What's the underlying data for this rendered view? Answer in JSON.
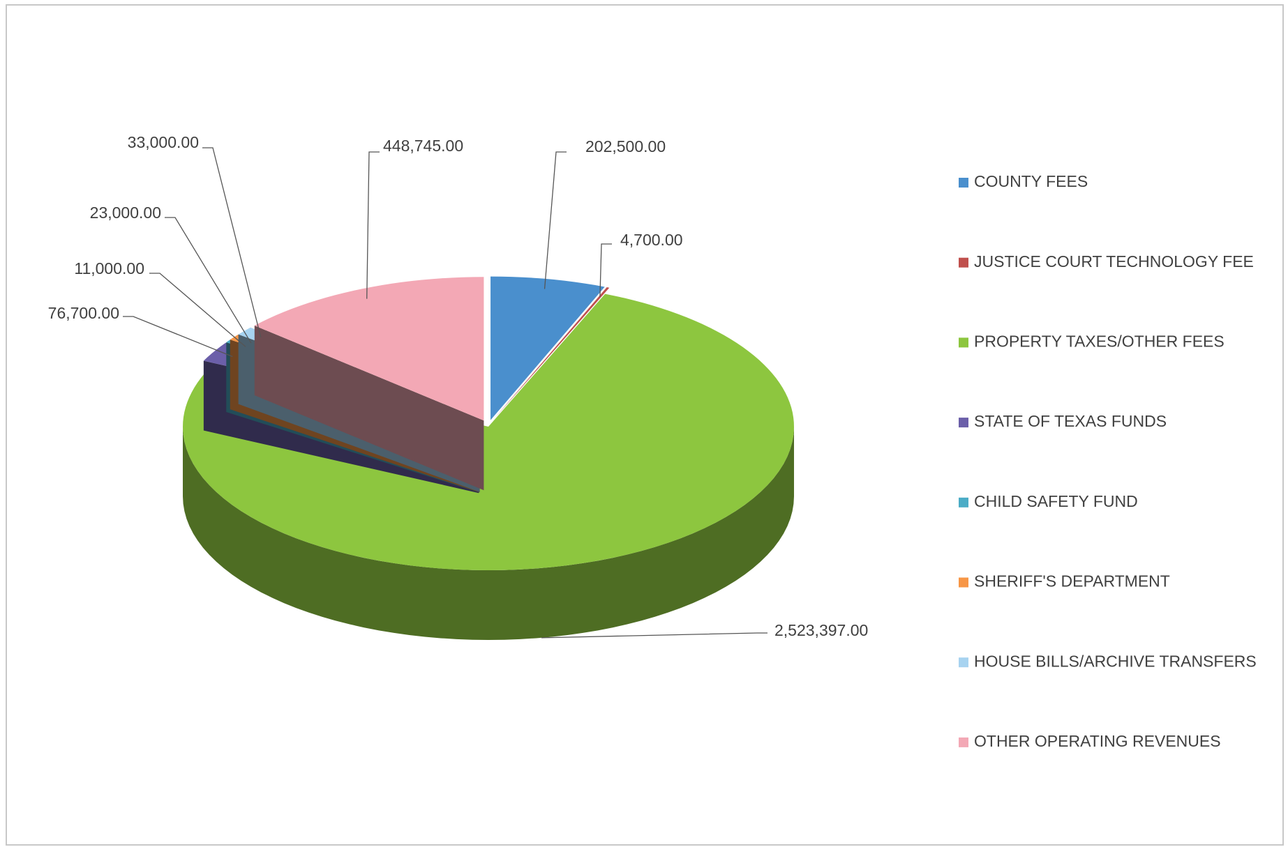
{
  "chart_data": {
    "type": "pie",
    "categories": [
      "COUNTY FEES",
      "JUSTICE COURT TECHNOLOGY FEE",
      "PROPERTY TAXES/OTHER FEES",
      "STATE OF TEXAS FUNDS",
      "CHILD SAFETY FUND",
      "SHERIFF'S DEPARTMENT",
      "HOUSE BILLS/ARCHIVE TRANSFERS",
      "OTHER OPERATING REVENUES"
    ],
    "values": [
      202500,
      4700,
      2523397,
      76700,
      11000,
      23000,
      33000,
      448745
    ],
    "value_labels": [
      "202,500.00",
      "4,700.00",
      "2,523,397.00",
      "76,700.00",
      "11,000.00",
      "23,000.00",
      "33,000.00",
      "448,745.00"
    ],
    "colors": [
      "#4a8fcd",
      "#c0504d",
      "#8dc63f",
      "#6b5fa9",
      "#4bacc6",
      "#f79646",
      "#a7d3f0",
      "#f3a8b5"
    ],
    "legend": "right"
  }
}
